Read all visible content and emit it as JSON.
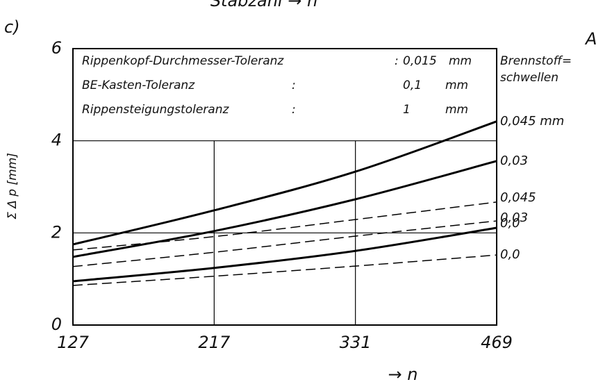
{
  "chart_data": {
    "type": "line",
    "title": "Stabzahl → n",
    "panel_label": "c)",
    "corner_label": "A",
    "ylabel": "Σ Δ p  [mm]",
    "xlabel": "→ n",
    "categories": [
      "127",
      "217",
      "331",
      "469"
    ],
    "ylim": [
      0,
      6
    ],
    "yticks": [
      0,
      2,
      4,
      6
    ],
    "grid": true,
    "info_box": [
      {
        "name": "Rippenkopf-Durchmesser-Toleranz",
        "sep": ":",
        "value": "0,015",
        "unit": "mm"
      },
      {
        "name": "BE-Kasten-Toleranz",
        "sep": ":",
        "value": "0,1",
        "unit": "mm"
      },
      {
        "name": "Rippensteigungstoleranz",
        "sep": ":",
        "value": "1",
        "unit": "mm"
      }
    ],
    "legend_title": [
      "Brennstoff=",
      "schwellen"
    ],
    "series": [
      {
        "name": "0,045 mm",
        "color": "#000000",
        "dashed": false,
        "values": [
          1.75,
          2.49,
          3.33,
          4.42
        ]
      },
      {
        "name": "0,03",
        "color": "#000000",
        "dashed": false,
        "values": [
          1.48,
          2.04,
          2.73,
          3.56
        ]
      },
      {
        "name": "0,045",
        "color": "#000000",
        "dashed": true,
        "values": [
          1.63,
          1.92,
          2.29,
          2.67
        ]
      },
      {
        "name": "0,03",
        "color": "#000000",
        "dashed": true,
        "values": [
          1.27,
          1.58,
          1.93,
          2.26
        ]
      },
      {
        "name": "0,0",
        "color": "#000000",
        "dashed": false,
        "values": [
          0.95,
          1.24,
          1.61,
          2.11
        ]
      },
      {
        "name": "0,0",
        "color": "#000000",
        "dashed": true,
        "values": [
          0.86,
          1.06,
          1.28,
          1.52
        ]
      }
    ]
  }
}
